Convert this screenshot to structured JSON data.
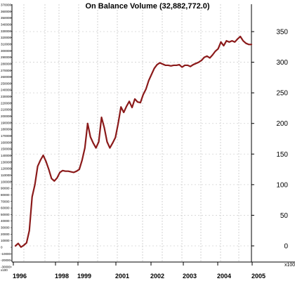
{
  "chart_data": {
    "type": "line",
    "title": "On Balance Volume (32,882,772.0)",
    "line_color": "#8b1a1a",
    "grid": true,
    "x_ticks": [
      "1996",
      "1998",
      "1999",
      "2001",
      "2002",
      "2003",
      "2004",
      "2005"
    ],
    "y_ticks_right": [
      "0",
      "50",
      "100",
      "150",
      "200",
      "250",
      "300",
      "350"
    ],
    "unit_label": "x100",
    "y_unit_left": "x100",
    "y_ticks_left": [
      "-30000",
      "-20000",
      "-10000",
      "0",
      "10000",
      "20000",
      "30000",
      "40000",
      "50000",
      "60000",
      "70000",
      "80000",
      "90000",
      "100000",
      "110000",
      "120000",
      "130000",
      "140000",
      "150000",
      "160000",
      "170000",
      "180000",
      "190000",
      "200000",
      "210000",
      "220000",
      "230000",
      "240000",
      "250000",
      "260000",
      "270000",
      "280000",
      "290000",
      "300000",
      "310000",
      "320000",
      "330000",
      "340000",
      "350000",
      "360000",
      "370000"
    ],
    "ylim": [
      -15,
      370
    ],
    "series": [
      {
        "values": [
          0,
          4,
          -2,
          1,
          5,
          25,
          80,
          100,
          130,
          140,
          148,
          138,
          125,
          110,
          106,
          111,
          120,
          123,
          122,
          122,
          121,
          120,
          122,
          125,
          140,
          160,
          200,
          178,
          168,
          160,
          170,
          210,
          193,
          170,
          160,
          168,
          177,
          200,
          227,
          218,
          228,
          236,
          226,
          240,
          235,
          234,
          247,
          256,
          270,
          280,
          290,
          296,
          299,
          297,
          295,
          295,
          294,
          295,
          295,
          296,
          292,
          295,
          295,
          293,
          296,
          298,
          300,
          303,
          308,
          310,
          307,
          312,
          318,
          322,
          333,
          327,
          335,
          333,
          335,
          333,
          338,
          342,
          335,
          331,
          329,
          329
        ]
      }
    ]
  }
}
